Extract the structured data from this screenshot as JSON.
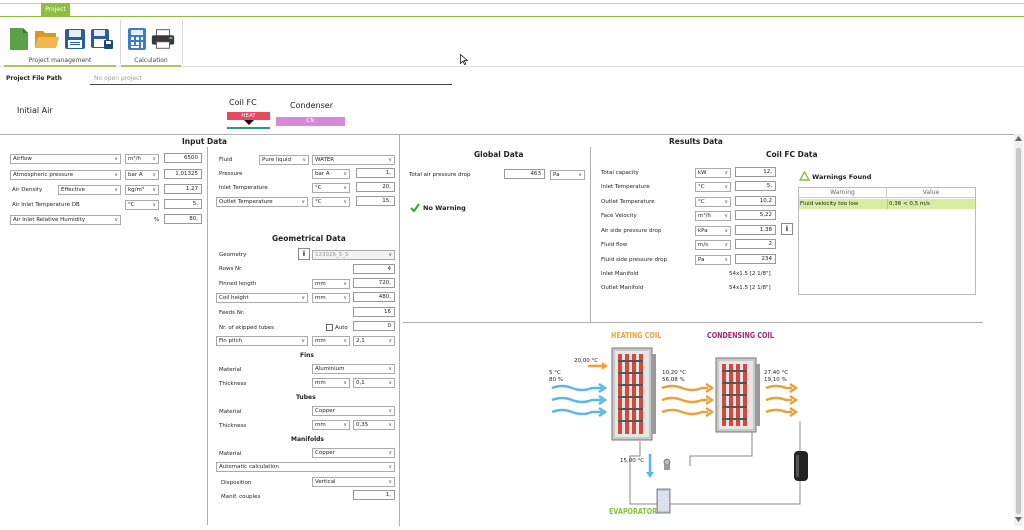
{
  "ribbon": {
    "tab": "Project",
    "groups": [
      {
        "label": "Project management"
      },
      {
        "label": "Calculation"
      }
    ],
    "icons": [
      "new-file-icon",
      "open-folder-icon",
      "save-icon",
      "save-as-icon",
      "calculator-icon",
      "printer-icon"
    ]
  },
  "project_path": {
    "label": "Project File Path",
    "value": "No open project"
  },
  "tabs": {
    "initial_air": "Initial Air",
    "coil_fc": "Coil FC",
    "coil_fc_badge": "HEAT",
    "condenser": "Condenser",
    "condenser_badge": "CN"
  },
  "input": {
    "title": "Input Data",
    "airflow": {
      "label": "Airflow",
      "unit": "m³/h",
      "value": "6500"
    },
    "atm_pressure": {
      "label": "Atmospheric pressure",
      "unit": "bar A",
      "value": "1,01325"
    },
    "air_density": {
      "label": "Air Density",
      "mode": "Effective",
      "unit": "kg/m³",
      "value": "1,27"
    },
    "inlet_temp": {
      "label": "Air Inlet Temperature DB",
      "unit": "°C",
      "value": "5,"
    },
    "inlet_rh": {
      "label": "Air Inlet Relative Humidity",
      "unit": "%",
      "value": "80,"
    },
    "fluid": {
      "label": "Fluid",
      "state": "Pure liquid",
      "name": "WATER"
    },
    "pressure": {
      "label": "Pressure",
      "unit": "bar A",
      "value": "1,"
    },
    "fluid_inlet_temp": {
      "label": "Inlet Temperature",
      "unit": "°C",
      "value": "20,"
    },
    "fluid_outlet_temp": {
      "label": "Outlet Temperature",
      "unit": "°C",
      "value": "15,"
    }
  },
  "geometry": {
    "title": "Geometrical Data",
    "geometry": {
      "label": "Geometry",
      "value": "123026_5_S"
    },
    "rows": {
      "label": "Rows Nr.",
      "value": "4"
    },
    "finned_length": {
      "label": "Finned length",
      "unit": "mm",
      "value": "720,"
    },
    "coil_height": {
      "label": "Coil height",
      "unit": "mm",
      "value": "480,"
    },
    "feeds": {
      "label": "Feeds Nr.",
      "value": "16"
    },
    "skipped_tubes": {
      "label": "Nr. of skipped tubes",
      "auto": "Auto",
      "value": "0"
    },
    "fin_pitch": {
      "label": "Fin pitch",
      "unit": "mm",
      "value": "2,1"
    },
    "fins_title": "Fins",
    "fins_material": {
      "label": "Material",
      "value": "Aluminium"
    },
    "fins_thickness": {
      "label": "Thickness",
      "unit": "mm",
      "value": "0,1"
    },
    "tubes_title": "Tubes",
    "tubes_material": {
      "label": "Material",
      "value": "Copper"
    },
    "tubes_thickness": {
      "label": "Thickness",
      "unit": "mm",
      "value": "0,35"
    },
    "manifolds_title": "Manifolds",
    "manifolds_material": {
      "label": "Material",
      "value": "Copper"
    },
    "auto_calc": "Automatic calculation",
    "disposition": {
      "label": "Disposition",
      "value": "Vertical"
    },
    "couples": {
      "label": "Manif. couples",
      "value": "1,"
    }
  },
  "results": {
    "title": "Results Data",
    "global": {
      "title": "Global Data",
      "pressure_drop": {
        "label": "Total air pressure drop",
        "value": "463",
        "unit": "Pa"
      },
      "status": "No Warning"
    },
    "coil": {
      "title": "Coil FC Data",
      "rows": [
        {
          "label": "Total capacity",
          "unit": "kW",
          "value": "12,"
        },
        {
          "label": "Inlet Temperature",
          "unit": "°C",
          "value": "5,"
        },
        {
          "label": "Outlet Temperature",
          "unit": "°C",
          "value": "10,2"
        },
        {
          "label": "Face Velocity",
          "unit": "m³/h",
          "value": "5,22"
        },
        {
          "label": "Air side pressure drop",
          "unit": "kPa",
          "value": "1,38"
        },
        {
          "label": "Fluid flow",
          "unit": "m/s",
          "value": "2"
        },
        {
          "label": "Fluid side pressure drop",
          "unit": "Pa",
          "value": "234"
        }
      ],
      "inlet_manifold": {
        "label": "Inlet Manifold",
        "value": "54x1.5 [2 1/8\"]"
      },
      "outlet_manifold": {
        "label": "Outlet Manifold",
        "value": "54x1.5 [2 1/8\"]"
      }
    },
    "warnings": {
      "title": "Warnings Found",
      "col_warning": "Warning",
      "col_value": "Value",
      "row_warning": "Fluid velocity too low",
      "row_value": "0,36 < 0,5 m/s"
    }
  },
  "diagram": {
    "heating_coil": "HEATING COIL",
    "condensing_coil": "CONDENSING COIL",
    "evaporator": "EVAPORATOR",
    "in_temp": "5 °C",
    "in_rh": "80 %",
    "fluid_in": "20,00 °C",
    "fluid_out": "15,00 °C",
    "mid_temp": "10,20 °C",
    "mid_rh": "56,08 %",
    "out_temp": "27,40 °C",
    "out_rh": "19,10 %"
  }
}
